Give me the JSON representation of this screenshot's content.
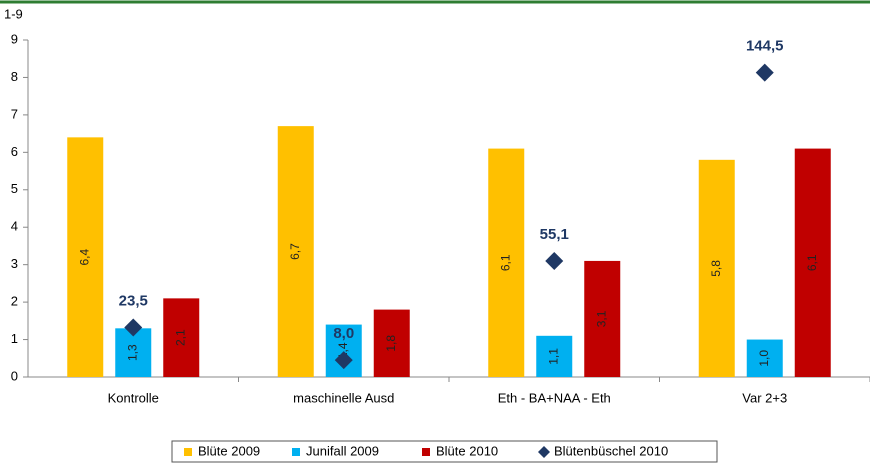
{
  "chart_data": {
    "type": "bar",
    "y_label": "1-9",
    "categories": [
      "Kontrolle",
      "maschinelle Ausd",
      "Eth - BA+NAA - Eth",
      "Var 2+3"
    ],
    "ylim": [
      0,
      9
    ],
    "yticks": [
      0,
      1,
      2,
      3,
      4,
      5,
      6,
      7,
      8,
      9
    ],
    "y2lim": [
      0,
      160
    ],
    "series": [
      {
        "name": "Blüte 2009",
        "color": "#FFC000",
        "values": [
          6.4,
          6.7,
          6.1,
          5.8
        ],
        "value_labels": [
          "6,4",
          "6,7",
          "6,1",
          "5,8"
        ]
      },
      {
        "name": "Junifall 2009",
        "color": "#00B0F0",
        "values": [
          1.3,
          1.4,
          1.1,
          1.0
        ],
        "value_labels": [
          "1,3",
          "1,4",
          "1,1",
          "1,0"
        ]
      },
      {
        "name": "Blüte 2010",
        "color": "#C00000",
        "values": [
          2.1,
          1.8,
          3.1,
          6.1
        ],
        "value_labels": [
          "2,1",
          "1,8",
          "3,1",
          "6,1"
        ]
      },
      {
        "name": "Blütenbüschel 2010",
        "color": "#1F3864",
        "type": "diamond",
        "axis": "y2",
        "values": [
          23.5,
          8.0,
          55.1,
          144.5
        ],
        "value_labels": [
          "23,5",
          "8,0",
          "55,1",
          "144,5"
        ]
      }
    ],
    "grid": false,
    "legend": "bottom"
  }
}
